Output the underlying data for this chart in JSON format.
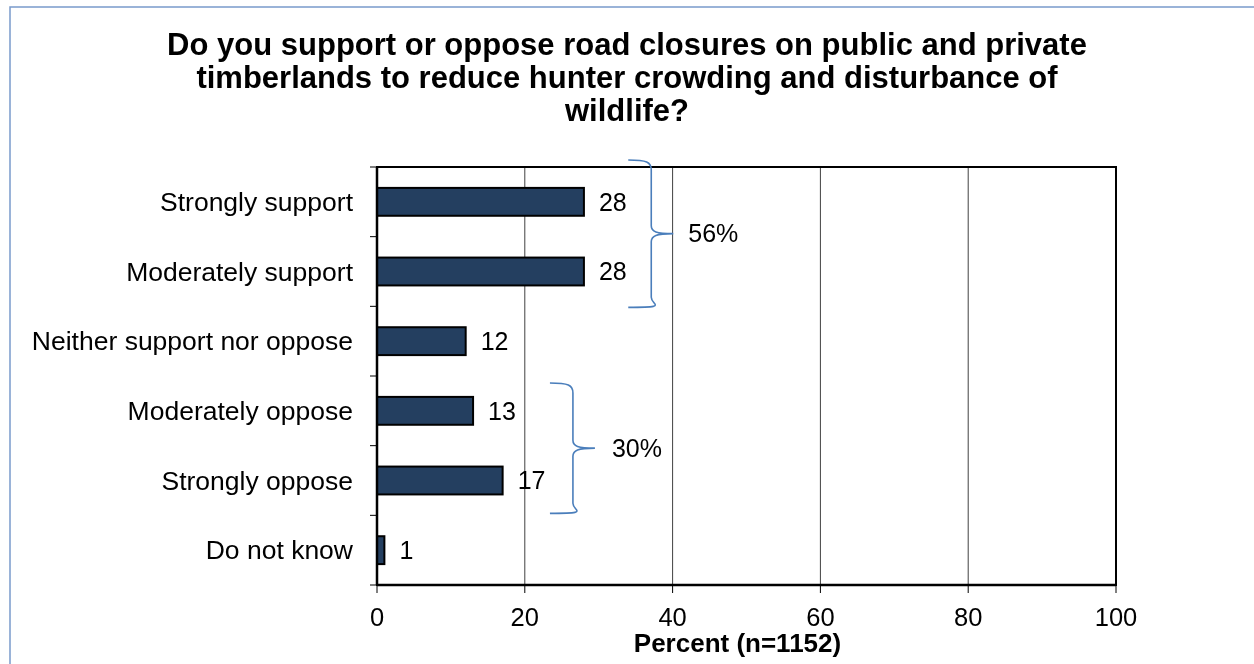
{
  "chart_data": {
    "type": "bar",
    "orientation": "horizontal",
    "title": "Do you support or oppose road closures on public and private timberlands to reduce hunter crowding and disturbance of wildlife?",
    "xlabel": "Percent (n=1152)",
    "categories": [
      "Strongly support",
      "Moderately support",
      "Neither support nor oppose",
      "Moderately oppose",
      "Strongly oppose",
      "Do not know"
    ],
    "values": [
      28,
      28,
      12,
      13,
      17,
      1
    ],
    "color": "#243f60",
    "xlim": [
      0,
      100
    ],
    "xticks": [
      0,
      20,
      40,
      60,
      80,
      100
    ],
    "grid": "x",
    "data_labels": true,
    "annotations": [
      "56%",
      "30%"
    ]
  }
}
